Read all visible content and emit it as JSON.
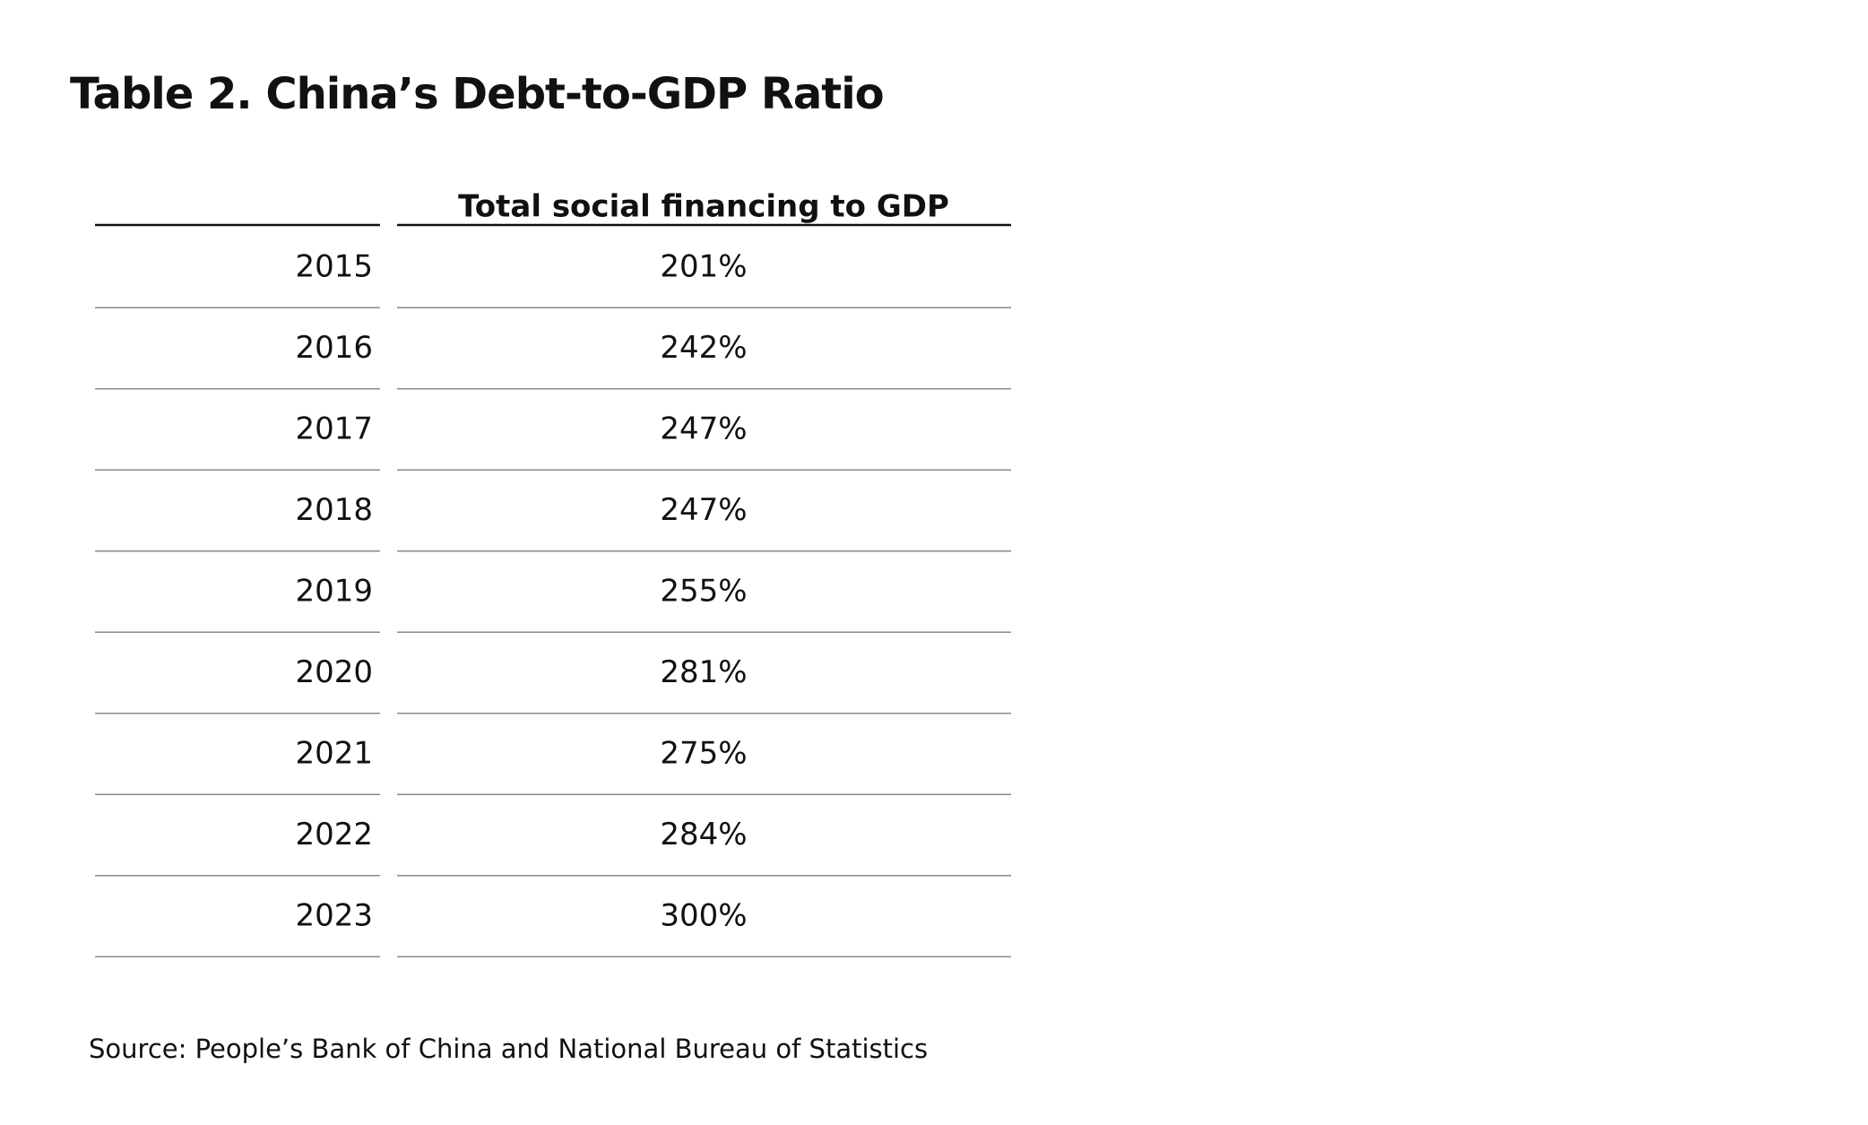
{
  "title": "Table 2. China’s Debt-to-GDP Ratio",
  "table": {
    "header": "Total social financing to GDP",
    "rows": [
      [
        "2015",
        "201%"
      ],
      [
        "2016",
        "242%"
      ],
      [
        "2017",
        "247%"
      ],
      [
        "2018",
        "247%"
      ],
      [
        "2019",
        "255%"
      ],
      [
        "2020",
        "281%"
      ],
      [
        "2021",
        "275%"
      ],
      [
        "2022",
        "284%"
      ],
      [
        "2023",
        "300%"
      ]
    ]
  },
  "source": "Source: People’s Bank of China and National Bureau of Statistics"
}
